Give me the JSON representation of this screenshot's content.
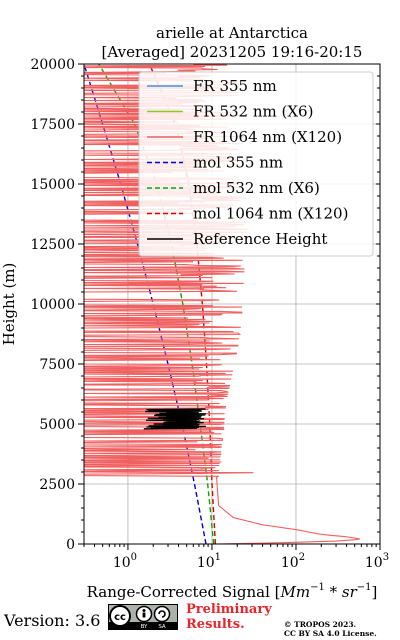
{
  "chart_data": {
    "type": "line",
    "title": [
      "arielle at Antarctica",
      "[Averaged] 20231205 19:16-20:15"
    ],
    "xlabel": "Range-Corrected Signal [Mm^-1 * sr^-1]",
    "xlabel_parts": {
      "main": "Range-Corrected Signal [",
      "mm": "Mm",
      "e1": "−1",
      "mid": " * sr",
      "e2": "−1",
      "end": "]"
    },
    "ylabel": "Height (m)",
    "xscale": "log",
    "xlim": [
      0.3,
      1000
    ],
    "ylim": [
      0,
      20000
    ],
    "xticks": [
      1,
      10,
      100,
      1000
    ],
    "xtick_labels": [
      {
        "base": "10",
        "exp": "0"
      },
      {
        "base": "10",
        "exp": "1"
      },
      {
        "base": "10",
        "exp": "2"
      },
      {
        "base": "10",
        "exp": "3"
      }
    ],
    "yticks": [
      0,
      2500,
      5000,
      7500,
      10000,
      12500,
      15000,
      17500,
      20000
    ],
    "ytick_labels": [
      "0",
      "2500",
      "5000",
      "7500",
      "10000",
      "12500",
      "15000",
      "17500",
      "20000"
    ],
    "grid": true,
    "legend_position": "top-right",
    "legend": [
      {
        "label": "FR 355 nm",
        "color": "#4a90d9",
        "style": "solid"
      },
      {
        "label": "FR 532 nm (X6)",
        "color": "#88cc22",
        "style": "solid"
      },
      {
        "label": "FR 1064 nm (X120)",
        "color": "#f06060",
        "style": "solid"
      },
      {
        "label": "mol 355 nm",
        "color": "#0000dd",
        "style": "dashed"
      },
      {
        "label": "mol 532 nm (X6)",
        "color": "#00aa00",
        "style": "dashed"
      },
      {
        "label": "mol 1064 nm (X120)",
        "color": "#dd0000",
        "style": "dashed"
      },
      {
        "label": "Reference Height",
        "color": "#000000",
        "style": "solid"
      }
    ],
    "series": [
      {
        "name": "mol 355 nm",
        "color": "#0000dd",
        "dash": true,
        "points": [
          [
            8.5,
            0
          ],
          [
            6.2,
            2500
          ],
          [
            4.4,
            5000
          ],
          [
            3.0,
            7500
          ],
          [
            2.0,
            10000
          ],
          [
            1.3,
            12500
          ],
          [
            0.82,
            15000
          ],
          [
            0.5,
            17500
          ],
          [
            0.3,
            20000
          ]
        ]
      },
      {
        "name": "mol 532 nm (X6)",
        "color": "#00aa00",
        "dash": true,
        "points": [
          [
            10.5,
            0
          ],
          [
            8.9,
            2500
          ],
          [
            7.2,
            5000
          ],
          [
            5.8,
            7500
          ],
          [
            4.5,
            10000
          ],
          [
            3.3,
            12500
          ],
          [
            2.2,
            15000
          ],
          [
            1.2,
            17500
          ],
          [
            0.45,
            20000
          ]
        ]
      },
      {
        "name": "mol 1064 nm (X120)",
        "color": "#dd0000",
        "dash": true,
        "points": [
          [
            11.0,
            0
          ],
          [
            10.0,
            2500
          ],
          [
            9.4,
            5000
          ],
          [
            8.6,
            7500
          ],
          [
            7.7,
            10000
          ],
          [
            6.6,
            12500
          ],
          [
            5.3,
            15000
          ],
          [
            3.7,
            17500
          ],
          [
            1.8,
            20000
          ]
        ]
      },
      {
        "name": "FR 1064 nm (X120)",
        "color": "#f06060",
        "dash": false,
        "noisy": true,
        "points": [
          [
            11,
            0
          ],
          [
            80,
            60
          ],
          [
            300,
            120
          ],
          [
            600,
            200
          ],
          [
            400,
            300
          ],
          [
            200,
            400
          ],
          [
            100,
            600
          ],
          [
            40,
            800
          ],
          [
            18,
            1100
          ],
          [
            12,
            1600
          ],
          [
            11.5,
            2500
          ],
          [
            11,
            3500
          ],
          [
            10.5,
            4500
          ],
          [
            10,
            5500
          ],
          [
            9.5,
            7000
          ],
          [
            9,
            8500
          ],
          [
            8.5,
            10000
          ],
          [
            8,
            12000
          ],
          [
            7,
            14000
          ],
          [
            6.5,
            16000
          ],
          [
            6,
            18000
          ],
          [
            5.5,
            20000
          ]
        ],
        "spike_max": [
          [
            3000,
            12
          ],
          [
            6000,
            15
          ],
          [
            9000,
            22
          ],
          [
            12000,
            25
          ],
          [
            15000,
            30
          ],
          [
            18000,
            35
          ],
          [
            20000,
            40
          ]
        ]
      },
      {
        "name": "Reference Height",
        "color": "#000000",
        "dash": false,
        "reference": true,
        "y_range": [
          4800,
          5600
        ],
        "x_range": [
          1.5,
          8.5
        ]
      }
    ]
  },
  "footer": {
    "version": "Version: 3.6",
    "preliminary": [
      "Preliminary",
      "Results."
    ],
    "copyright": [
      "© TROPOS 2023.",
      "CC BY SA 4.0 License."
    ],
    "cc_badge": "cc-by-sa-badge"
  }
}
